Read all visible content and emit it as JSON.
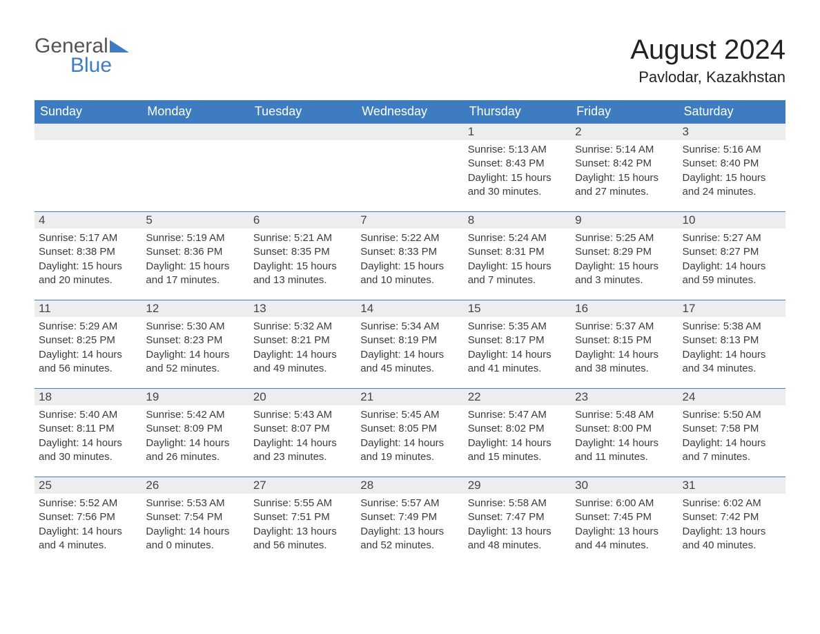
{
  "logo": {
    "word1": "General",
    "word2": "Blue"
  },
  "title": "August 2024",
  "location": "Pavlodar, Kazakhstan",
  "day_names": [
    "Sunday",
    "Monday",
    "Tuesday",
    "Wednesday",
    "Thursday",
    "Friday",
    "Saturday"
  ],
  "colors": {
    "header_bg": "#3d7cc0",
    "header_text": "#ffffff",
    "daynum_bg": "#ededed",
    "row_border": "#3d7cc0",
    "body_text": "#3b3b3b",
    "title_text": "#222222",
    "logo_gray": "#555555",
    "logo_blue": "#3d7cc0",
    "background": "#ffffff"
  },
  "font": {
    "title_size_pt": 30,
    "location_size_pt": 17,
    "header_size_pt": 14,
    "daynum_size_pt": 13,
    "detail_size_pt": 11
  },
  "weeks": [
    [
      null,
      null,
      null,
      null,
      {
        "n": "1",
        "sunrise": "Sunrise: 5:13 AM",
        "sunset": "Sunset: 8:43 PM",
        "dl1": "Daylight: 15 hours",
        "dl2": "and 30 minutes."
      },
      {
        "n": "2",
        "sunrise": "Sunrise: 5:14 AM",
        "sunset": "Sunset: 8:42 PM",
        "dl1": "Daylight: 15 hours",
        "dl2": "and 27 minutes."
      },
      {
        "n": "3",
        "sunrise": "Sunrise: 5:16 AM",
        "sunset": "Sunset: 8:40 PM",
        "dl1": "Daylight: 15 hours",
        "dl2": "and 24 minutes."
      }
    ],
    [
      {
        "n": "4",
        "sunrise": "Sunrise: 5:17 AM",
        "sunset": "Sunset: 8:38 PM",
        "dl1": "Daylight: 15 hours",
        "dl2": "and 20 minutes."
      },
      {
        "n": "5",
        "sunrise": "Sunrise: 5:19 AM",
        "sunset": "Sunset: 8:36 PM",
        "dl1": "Daylight: 15 hours",
        "dl2": "and 17 minutes."
      },
      {
        "n": "6",
        "sunrise": "Sunrise: 5:21 AM",
        "sunset": "Sunset: 8:35 PM",
        "dl1": "Daylight: 15 hours",
        "dl2": "and 13 minutes."
      },
      {
        "n": "7",
        "sunrise": "Sunrise: 5:22 AM",
        "sunset": "Sunset: 8:33 PM",
        "dl1": "Daylight: 15 hours",
        "dl2": "and 10 minutes."
      },
      {
        "n": "8",
        "sunrise": "Sunrise: 5:24 AM",
        "sunset": "Sunset: 8:31 PM",
        "dl1": "Daylight: 15 hours",
        "dl2": "and 7 minutes."
      },
      {
        "n": "9",
        "sunrise": "Sunrise: 5:25 AM",
        "sunset": "Sunset: 8:29 PM",
        "dl1": "Daylight: 15 hours",
        "dl2": "and 3 minutes."
      },
      {
        "n": "10",
        "sunrise": "Sunrise: 5:27 AM",
        "sunset": "Sunset: 8:27 PM",
        "dl1": "Daylight: 14 hours",
        "dl2": "and 59 minutes."
      }
    ],
    [
      {
        "n": "11",
        "sunrise": "Sunrise: 5:29 AM",
        "sunset": "Sunset: 8:25 PM",
        "dl1": "Daylight: 14 hours",
        "dl2": "and 56 minutes."
      },
      {
        "n": "12",
        "sunrise": "Sunrise: 5:30 AM",
        "sunset": "Sunset: 8:23 PM",
        "dl1": "Daylight: 14 hours",
        "dl2": "and 52 minutes."
      },
      {
        "n": "13",
        "sunrise": "Sunrise: 5:32 AM",
        "sunset": "Sunset: 8:21 PM",
        "dl1": "Daylight: 14 hours",
        "dl2": "and 49 minutes."
      },
      {
        "n": "14",
        "sunrise": "Sunrise: 5:34 AM",
        "sunset": "Sunset: 8:19 PM",
        "dl1": "Daylight: 14 hours",
        "dl2": "and 45 minutes."
      },
      {
        "n": "15",
        "sunrise": "Sunrise: 5:35 AM",
        "sunset": "Sunset: 8:17 PM",
        "dl1": "Daylight: 14 hours",
        "dl2": "and 41 minutes."
      },
      {
        "n": "16",
        "sunrise": "Sunrise: 5:37 AM",
        "sunset": "Sunset: 8:15 PM",
        "dl1": "Daylight: 14 hours",
        "dl2": "and 38 minutes."
      },
      {
        "n": "17",
        "sunrise": "Sunrise: 5:38 AM",
        "sunset": "Sunset: 8:13 PM",
        "dl1": "Daylight: 14 hours",
        "dl2": "and 34 minutes."
      }
    ],
    [
      {
        "n": "18",
        "sunrise": "Sunrise: 5:40 AM",
        "sunset": "Sunset: 8:11 PM",
        "dl1": "Daylight: 14 hours",
        "dl2": "and 30 minutes."
      },
      {
        "n": "19",
        "sunrise": "Sunrise: 5:42 AM",
        "sunset": "Sunset: 8:09 PM",
        "dl1": "Daylight: 14 hours",
        "dl2": "and 26 minutes."
      },
      {
        "n": "20",
        "sunrise": "Sunrise: 5:43 AM",
        "sunset": "Sunset: 8:07 PM",
        "dl1": "Daylight: 14 hours",
        "dl2": "and 23 minutes."
      },
      {
        "n": "21",
        "sunrise": "Sunrise: 5:45 AM",
        "sunset": "Sunset: 8:05 PM",
        "dl1": "Daylight: 14 hours",
        "dl2": "and 19 minutes."
      },
      {
        "n": "22",
        "sunrise": "Sunrise: 5:47 AM",
        "sunset": "Sunset: 8:02 PM",
        "dl1": "Daylight: 14 hours",
        "dl2": "and 15 minutes."
      },
      {
        "n": "23",
        "sunrise": "Sunrise: 5:48 AM",
        "sunset": "Sunset: 8:00 PM",
        "dl1": "Daylight: 14 hours",
        "dl2": "and 11 minutes."
      },
      {
        "n": "24",
        "sunrise": "Sunrise: 5:50 AM",
        "sunset": "Sunset: 7:58 PM",
        "dl1": "Daylight: 14 hours",
        "dl2": "and 7 minutes."
      }
    ],
    [
      {
        "n": "25",
        "sunrise": "Sunrise: 5:52 AM",
        "sunset": "Sunset: 7:56 PM",
        "dl1": "Daylight: 14 hours",
        "dl2": "and 4 minutes."
      },
      {
        "n": "26",
        "sunrise": "Sunrise: 5:53 AM",
        "sunset": "Sunset: 7:54 PM",
        "dl1": "Daylight: 14 hours",
        "dl2": "and 0 minutes."
      },
      {
        "n": "27",
        "sunrise": "Sunrise: 5:55 AM",
        "sunset": "Sunset: 7:51 PM",
        "dl1": "Daylight: 13 hours",
        "dl2": "and 56 minutes."
      },
      {
        "n": "28",
        "sunrise": "Sunrise: 5:57 AM",
        "sunset": "Sunset: 7:49 PM",
        "dl1": "Daylight: 13 hours",
        "dl2": "and 52 minutes."
      },
      {
        "n": "29",
        "sunrise": "Sunrise: 5:58 AM",
        "sunset": "Sunset: 7:47 PM",
        "dl1": "Daylight: 13 hours",
        "dl2": "and 48 minutes."
      },
      {
        "n": "30",
        "sunrise": "Sunrise: 6:00 AM",
        "sunset": "Sunset: 7:45 PM",
        "dl1": "Daylight: 13 hours",
        "dl2": "and 44 minutes."
      },
      {
        "n": "31",
        "sunrise": "Sunrise: 6:02 AM",
        "sunset": "Sunset: 7:42 PM",
        "dl1": "Daylight: 13 hours",
        "dl2": "and 40 minutes."
      }
    ]
  ]
}
